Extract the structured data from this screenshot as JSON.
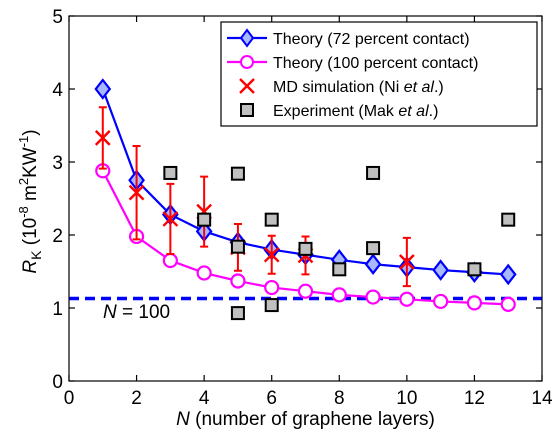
{
  "chart_data": {
    "type": "line",
    "xlabel": {
      "var": "N",
      "rest": "(number of graphene layers)"
    },
    "ylabel": {
      "var": "R",
      "sub": "K",
      "unit_pre": "(10",
      "unit_exp1": "-8",
      "unit_mid": " m",
      "unit_exp2": "2",
      "unit_mid2": "KW",
      "unit_exp3": "-1",
      "unit_post": ")"
    },
    "xlim": [
      0,
      14
    ],
    "ylim": [
      0,
      5
    ],
    "xticks": [
      0,
      2,
      4,
      6,
      8,
      10,
      12,
      14
    ],
    "yticks": [
      0,
      1,
      2,
      3,
      4,
      5
    ],
    "grid": false,
    "legend_position": "top-right",
    "series": [
      {
        "name": "Theory (72 percent contact)",
        "style": "line-diamond",
        "color": "#0000ff",
        "marker_fill": "#a8b8ff",
        "x": [
          1,
          2,
          3,
          4,
          5,
          6,
          7,
          8,
          9,
          10,
          11,
          12,
          13
        ],
        "y": [
          4.0,
          2.75,
          2.28,
          2.05,
          1.9,
          1.8,
          1.73,
          1.66,
          1.6,
          1.56,
          1.52,
          1.49,
          1.46
        ]
      },
      {
        "name": "Theory (100 percent contact)",
        "style": "line-circle",
        "color": "#ff00ff",
        "marker_fill": "#ffffff",
        "x": [
          1,
          2,
          3,
          4,
          5,
          6,
          7,
          8,
          9,
          10,
          11,
          12,
          13
        ],
        "y": [
          2.88,
          1.98,
          1.65,
          1.48,
          1.37,
          1.28,
          1.23,
          1.18,
          1.15,
          1.12,
          1.09,
          1.07,
          1.05
        ]
      },
      {
        "name_parts": [
          "MD simulation (Ni ",
          "et al",
          ".)"
        ],
        "style": "cross-errorbar",
        "color": "#ff0000",
        "x": [
          1,
          2,
          3,
          4,
          5,
          6,
          7,
          10
        ],
        "y": [
          3.33,
          2.58,
          2.22,
          2.32,
          1.83,
          1.73,
          1.72,
          1.63
        ],
        "err": [
          0.42,
          0.64,
          0.48,
          0.48,
          0.32,
          0.26,
          0.26,
          0.33
        ]
      },
      {
        "name_parts": [
          "Experiment (Mak ",
          "et al",
          ".)"
        ],
        "style": "square",
        "color": "#000000",
        "marker_fill": "#c0c0c0",
        "points": [
          [
            3,
            2.85
          ],
          [
            4,
            2.21
          ],
          [
            5,
            2.84
          ],
          [
            5,
            1.84
          ],
          [
            5,
            0.93
          ],
          [
            6,
            2.21
          ],
          [
            6,
            1.04
          ],
          [
            7,
            1.81
          ],
          [
            8,
            1.53
          ],
          [
            9,
            2.85
          ],
          [
            9,
            1.82
          ],
          [
            12,
            1.53
          ],
          [
            13,
            2.21
          ]
        ]
      }
    ],
    "reference_line": {
      "y": 1.13,
      "color": "#0000ff",
      "label_var": "N",
      "label_rest": " = 100"
    }
  }
}
